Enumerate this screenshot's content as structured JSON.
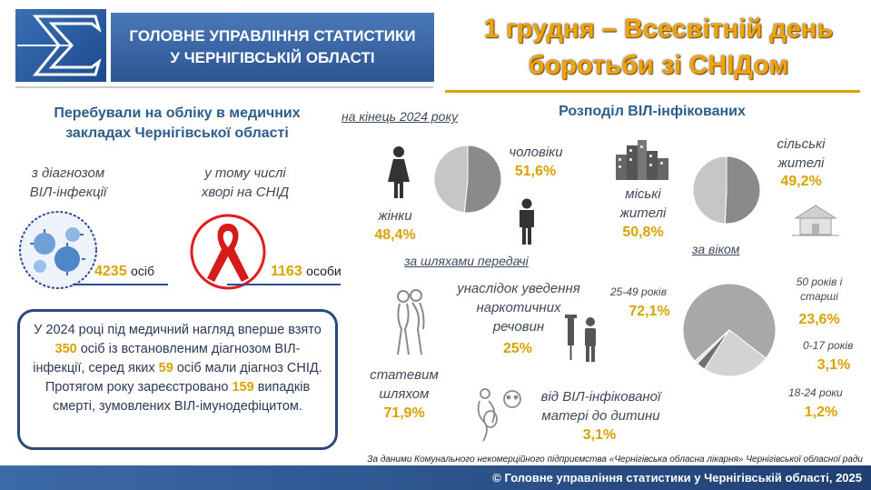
{
  "header": {
    "org_line1": "ГОЛОВНЕ УПРАВЛІННЯ СТАТИСТИКИ",
    "org_line2": "У ЧЕРНІГІВСЬКІЙ ОБЛАСТІ",
    "title_line1": "1 грудня – Всесвітній день",
    "title_line2": "боротьби зі СНІДом"
  },
  "left": {
    "heading_line1": "Перебували на обліку в медичних",
    "heading_line2": "закладах Чернігівської області",
    "period": "на кінець 2024 року",
    "hiv_label_line1": "з діагнозом",
    "hiv_label_line2": "ВІЛ-інфекції",
    "hiv_value": "4235",
    "hiv_unit": "осіб",
    "aids_label_line1": "у тому числі",
    "aids_label_line2": "хворі на СНІД",
    "aids_value": "1163",
    "aids_unit": "особи"
  },
  "info": {
    "t1": "У 2024 році під медичний нагляд вперше взято ",
    "n1": "350",
    "t2": " осіб із встановленим діагнозом ВІЛ-інфекції, серед яких ",
    "n2": "59",
    "t3": " осіб мали діагноз СНІД. Протягом року зареєстровано ",
    "n3": "159",
    "t4": " випадків смерті, зумовлених ВІЛ-імунодефіцитом."
  },
  "distribution": {
    "heading": "Розподіл ВІЛ-інфікованих",
    "men_label": "чоловіки",
    "men_value": "51,6%",
    "women_label": "жінки",
    "women_value": "48,4%",
    "urban_label_line1": "міські",
    "urban_label_line2": "жителі",
    "urban_value": "50,8%",
    "rural_label_line1": "сільські",
    "rural_label_line2": "жителі",
    "rural_value": "49,2%"
  },
  "transmission": {
    "heading": "за шляхами передачі",
    "injection_line1": "унаслідок уведення",
    "injection_line2": "наркотичних",
    "injection_line3": "речовин",
    "injection_value": "25%",
    "sexual_line1": "статевим",
    "sexual_line2": "шляхом",
    "sexual_value": "71,9%",
    "mother_line1": "від ВІЛ-інфікованої",
    "mother_line2": "матері до дитини",
    "mother_value": "3,1%"
  },
  "age": {
    "heading": "за віком",
    "a2549_label": "25-49 років",
    "a2549_value": "72,1%",
    "a50_line1": "50 років і",
    "a50_line2": "старші",
    "a50_value": "23,6%",
    "a017_label": "0-17 років",
    "a017_value": "3,1%",
    "a1824_label": "18-24 роки",
    "a1824_value": "1,2%"
  },
  "chart_data": [
    {
      "type": "pie",
      "categories": [
        "чоловіки",
        "жінки"
      ],
      "values": [
        51.6,
        48.4
      ]
    },
    {
      "type": "pie",
      "categories": [
        "міські жителі",
        "сільські жителі"
      ],
      "values": [
        50.8,
        49.2
      ]
    },
    {
      "type": "pie",
      "categories": [
        "25-49 років",
        "50 років і старші",
        "0-17 років",
        "18-24 роки"
      ],
      "values": [
        72.1,
        23.6,
        3.1,
        1.2
      ]
    }
  ],
  "colors": {
    "gender": [
      "#8a8a8a",
      "#c6c6c6"
    ],
    "residence": [
      "#8a8a8a",
      "#c6c6c6"
    ],
    "age": [
      "#a8a8a8",
      "#d3d3d3",
      "#707070",
      "#e6e6e6"
    ]
  },
  "source": "За даними Комунального некомерційного підприємства «Чернігівська обласна лікарня» Чернігівської обласної ради",
  "footer": "© Головне управління статистики у Чернігівській області, 2025"
}
